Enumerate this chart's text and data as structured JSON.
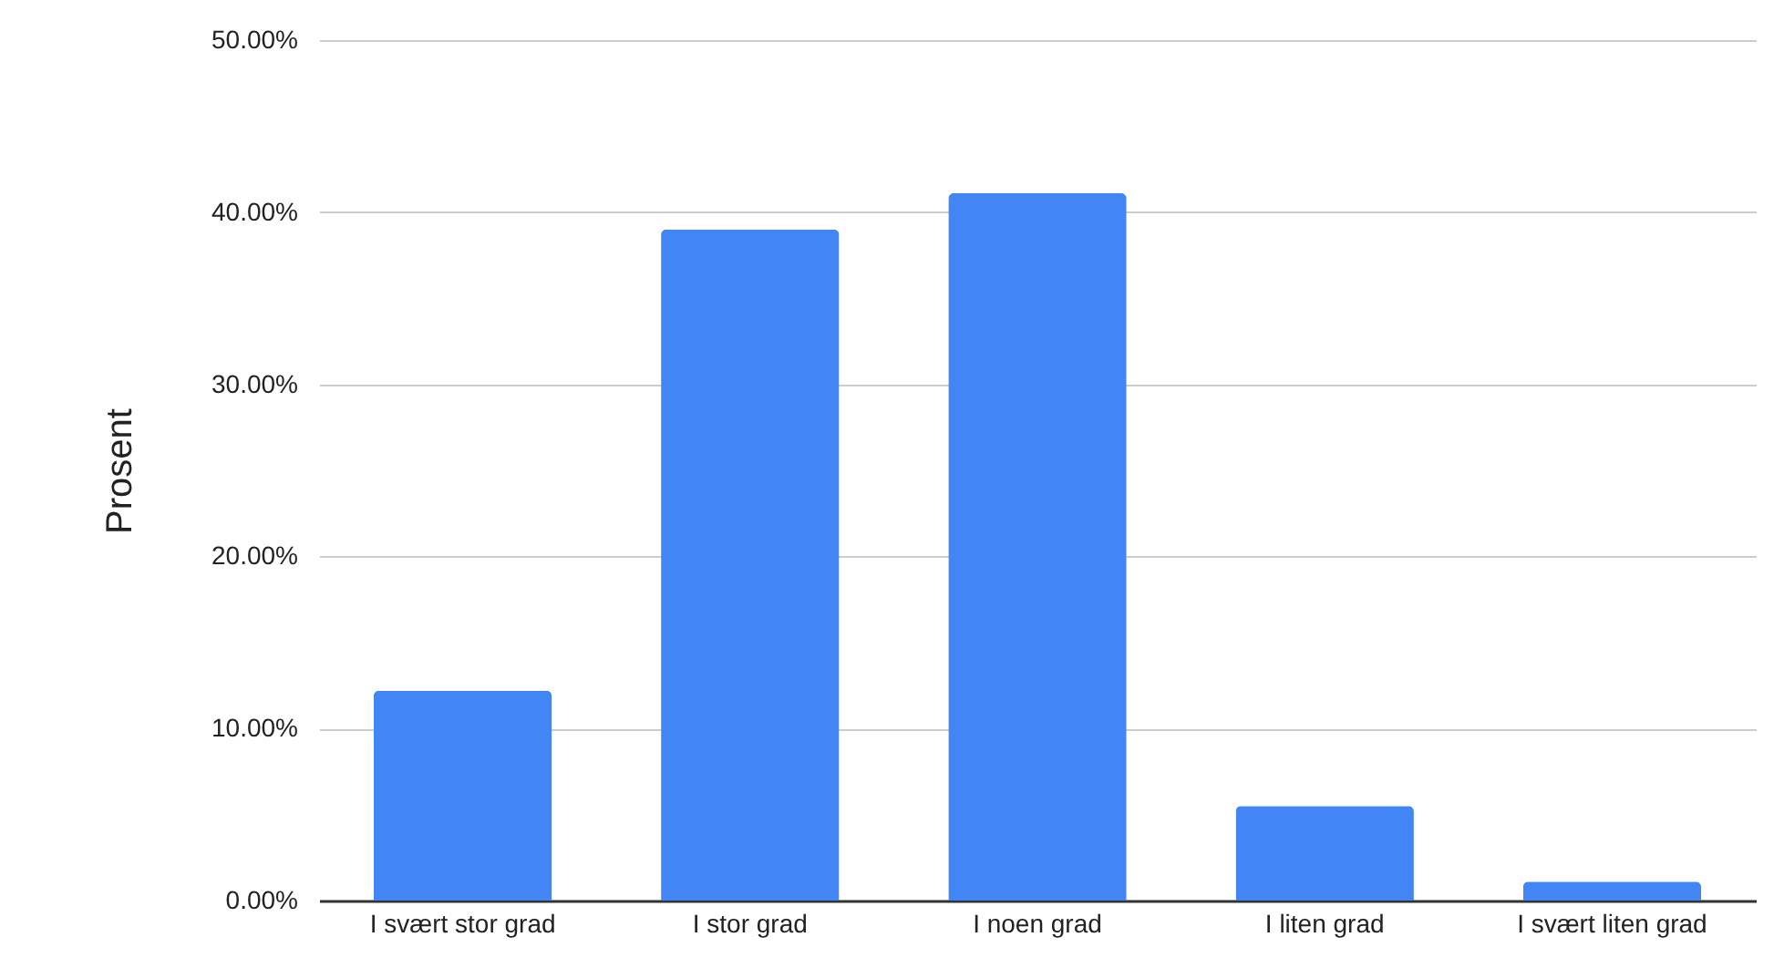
{
  "chart_data": {
    "type": "bar",
    "ylabel": "Prosent",
    "categories": [
      "I svært stor grad",
      "I stor grad",
      "I noen grad",
      "I liten grad",
      "I svært liten grad"
    ],
    "values": [
      12.2,
      39.0,
      41.1,
      5.5,
      1.1
    ],
    "color": "#4285f4",
    "ylim": [
      0,
      50
    ],
    "yticks": [
      {
        "value": 0,
        "label": "0.00%"
      },
      {
        "value": 10,
        "label": "10.00%"
      },
      {
        "value": 20,
        "label": "20.00%"
      },
      {
        "value": 30,
        "label": "30.00%"
      },
      {
        "value": 40,
        "label": "40.00%"
      },
      {
        "value": 50,
        "label": "50.00%"
      }
    ],
    "grid": "y"
  }
}
